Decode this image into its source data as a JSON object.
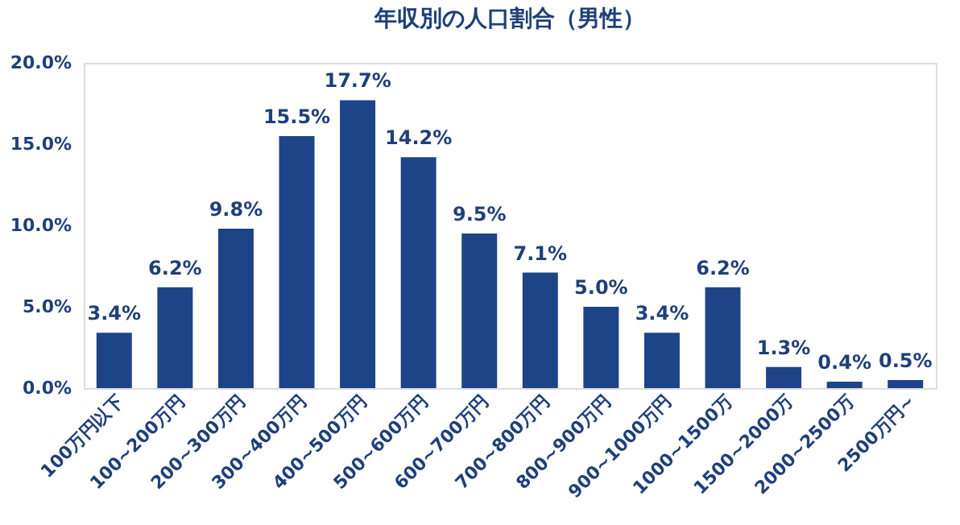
{
  "chart_data": {
    "type": "bar",
    "title": "年収別の人口割合（男性）",
    "categories": [
      "100万円以下",
      "100~200万円",
      "200~300万円",
      "300~400万円",
      "400~500万円",
      "500~600万円",
      "600~700万円",
      "700~800万円",
      "800~900万円",
      "900~1000万円",
      "1000~1500万",
      "1500~2000万",
      "2000~2500万",
      "2500万円~"
    ],
    "values": [
      3.4,
      6.2,
      9.8,
      15.5,
      17.7,
      14.2,
      9.5,
      7.1,
      5.0,
      3.4,
      6.2,
      1.3,
      0.4,
      0.5
    ],
    "value_labels": [
      "3.4%",
      "6.2%",
      "9.8%",
      "15.5%",
      "17.7%",
      "14.2%",
      "9.5%",
      "7.1%",
      "5.0%",
      "3.4%",
      "6.2%",
      "1.3%",
      "0.4%",
      "0.5%"
    ],
    "color": "#1e4488",
    "ylim": [
      0,
      20
    ],
    "yticks": [
      {
        "value": 0,
        "label": "0.0%"
      },
      {
        "value": 5,
        "label": "5.0%"
      },
      {
        "value": 10,
        "label": "10.0%"
      },
      {
        "value": 15,
        "label": "15.0%"
      },
      {
        "value": 20,
        "label": "20.0%"
      }
    ],
    "grid": false
  }
}
